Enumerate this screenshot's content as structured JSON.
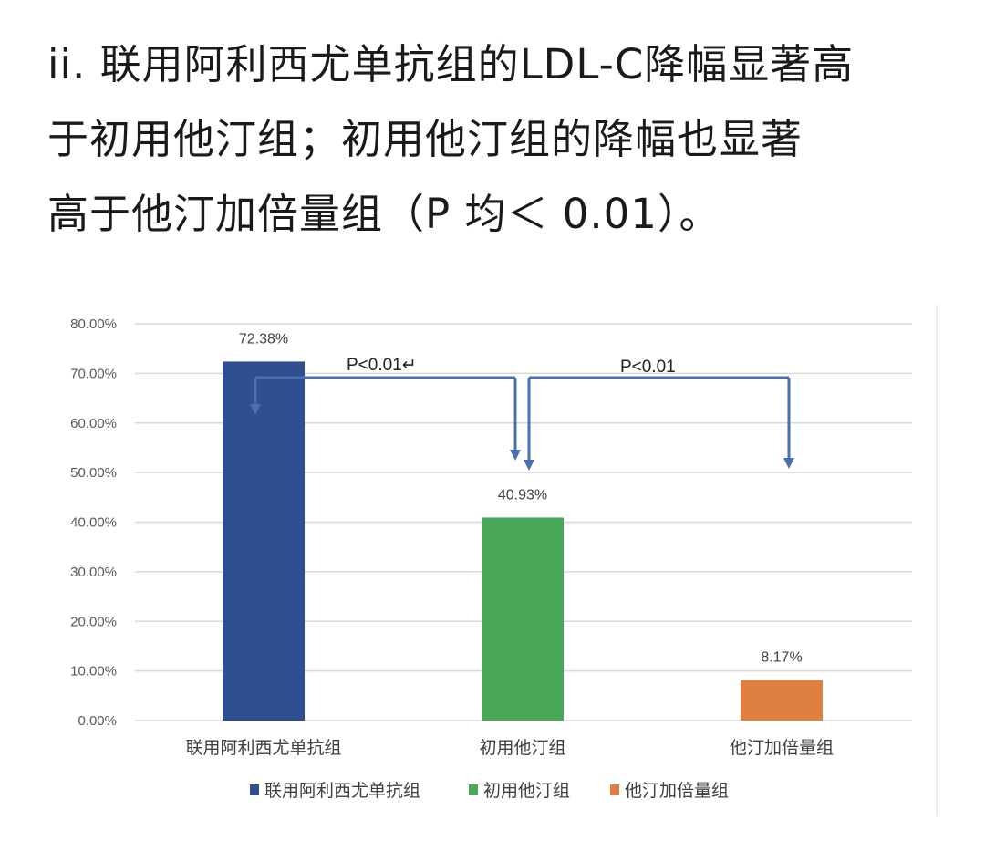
{
  "heading": {
    "lines": [
      "ii. 联用阿利西尤单抗组的LDL-C降幅显著高",
      "于初用他汀组；初用他汀组的降幅也显著",
      "高于他汀加倍量组（P 均＜ 0.01）。"
    ]
  },
  "chart_data": {
    "type": "bar",
    "categories": [
      "联用阿利西尤单抗组",
      "初用他汀组",
      "他汀加倍量组"
    ],
    "values": [
      72.38,
      40.93,
      8.17
    ],
    "data_labels": [
      "72.38%",
      "40.93%",
      "8.17%"
    ],
    "colors": [
      "#2f4f8f",
      "#4aa757",
      "#e08040"
    ],
    "ylim": [
      0,
      80
    ],
    "yticks": [
      "0.00%",
      "10.00%",
      "20.00%",
      "30.00%",
      "40.00%",
      "50.00%",
      "60.00%",
      "70.00%",
      "80.00%"
    ],
    "grid": true,
    "legend": {
      "placement": "bottom",
      "entries": [
        "联用阿利西尤单抗组",
        "初用他汀组",
        "他汀加倍量组"
      ]
    },
    "annotations": [
      {
        "text": "P<0.01↵",
        "between": [
          "联用阿利西尤单抗组",
          "初用他汀组"
        ]
      },
      {
        "text": "P<0.01",
        "between": [
          "初用他汀组",
          "他汀加倍量组"
        ]
      }
    ],
    "bracket_color": "#4a6fae",
    "title": "",
    "xlabel": "",
    "ylabel": ""
  }
}
